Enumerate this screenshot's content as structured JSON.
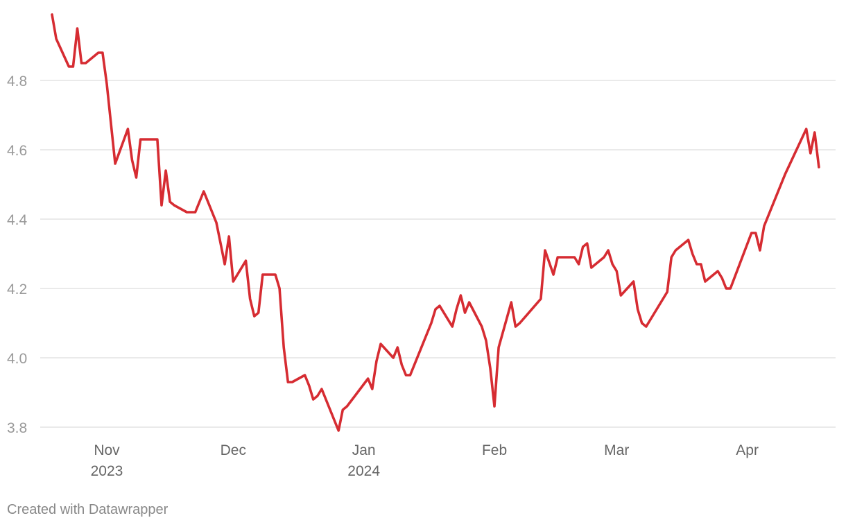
{
  "footer": {
    "credit": "Created with Datawrapper"
  },
  "colors": {
    "line": "#d62c32",
    "grid": "#dddddd",
    "axis_text": "#999999",
    "x_text": "#666666",
    "footer": "#888888"
  },
  "chart_data": {
    "type": "line",
    "title": "",
    "xlabel": "",
    "ylabel": "",
    "ylim": [
      3.8,
      5.0
    ],
    "xlim": [
      "2023-10-19",
      "2024-04-19"
    ],
    "grid": true,
    "y_ticks": [
      {
        "value": 3.8,
        "label": "3.8"
      },
      {
        "value": 4.0,
        "label": "4.0"
      },
      {
        "value": 4.2,
        "label": "4.2"
      },
      {
        "value": 4.4,
        "label": "4.4"
      },
      {
        "value": 4.6,
        "label": "4.6"
      },
      {
        "value": 4.8,
        "label": "4.8"
      }
    ],
    "x_ticks": [
      {
        "date": "2023-11-01",
        "label": "Nov",
        "sublabel": "2023"
      },
      {
        "date": "2023-12-01",
        "label": "Dec",
        "sublabel": ""
      },
      {
        "date": "2024-01-01",
        "label": "Jan",
        "sublabel": "2024"
      },
      {
        "date": "2024-02-01",
        "label": "Feb",
        "sublabel": ""
      },
      {
        "date": "2024-03-01",
        "label": "Mar",
        "sublabel": ""
      },
      {
        "date": "2024-04-01",
        "label": "Apr",
        "sublabel": ""
      }
    ],
    "series": [
      {
        "values": [
          [
            "2023-10-19",
            4.99
          ],
          [
            "2023-10-20",
            4.92
          ],
          [
            "2023-10-23",
            4.84
          ],
          [
            "2023-10-24",
            4.84
          ],
          [
            "2023-10-25",
            4.95
          ],
          [
            "2023-10-26",
            4.85
          ],
          [
            "2023-10-27",
            4.85
          ],
          [
            "2023-10-30",
            4.88
          ],
          [
            "2023-10-31",
            4.88
          ],
          [
            "2023-11-01",
            4.79
          ],
          [
            "2023-11-03",
            4.56
          ],
          [
            "2023-11-06",
            4.66
          ],
          [
            "2023-11-07",
            4.57
          ],
          [
            "2023-11-08",
            4.52
          ],
          [
            "2023-11-09",
            4.63
          ],
          [
            "2023-11-10",
            4.63
          ],
          [
            "2023-11-13",
            4.63
          ],
          [
            "2023-11-14",
            4.44
          ],
          [
            "2023-11-15",
            4.54
          ],
          [
            "2023-11-16",
            4.45
          ],
          [
            "2023-11-17",
            4.44
          ],
          [
            "2023-11-20",
            4.42
          ],
          [
            "2023-11-21",
            4.42
          ],
          [
            "2023-11-22",
            4.42
          ],
          [
            "2023-11-24",
            4.48
          ],
          [
            "2023-11-27",
            4.39
          ],
          [
            "2023-11-28",
            4.33
          ],
          [
            "2023-11-29",
            4.27
          ],
          [
            "2023-11-30",
            4.35
          ],
          [
            "2023-12-01",
            4.22
          ],
          [
            "2023-12-04",
            4.28
          ],
          [
            "2023-12-05",
            4.17
          ],
          [
            "2023-12-06",
            4.12
          ],
          [
            "2023-12-07",
            4.13
          ],
          [
            "2023-12-08",
            4.24
          ],
          [
            "2023-12-11",
            4.24
          ],
          [
            "2023-12-12",
            4.2
          ],
          [
            "2023-12-13",
            4.03
          ],
          [
            "2023-12-14",
            3.93
          ],
          [
            "2023-12-15",
            3.93
          ],
          [
            "2023-12-18",
            3.95
          ],
          [
            "2023-12-19",
            3.92
          ],
          [
            "2023-12-20",
            3.88
          ],
          [
            "2023-12-21",
            3.89
          ],
          [
            "2023-12-22",
            3.91
          ],
          [
            "2023-12-26",
            3.79
          ],
          [
            "2023-12-27",
            3.85
          ],
          [
            "2023-12-28",
            3.86
          ],
          [
            "2024-01-02",
            3.94
          ],
          [
            "2024-01-03",
            3.91
          ],
          [
            "2024-01-04",
            3.99
          ],
          [
            "2024-01-05",
            4.04
          ],
          [
            "2024-01-08",
            4.0
          ],
          [
            "2024-01-09",
            4.03
          ],
          [
            "2024-01-10",
            3.98
          ],
          [
            "2024-01-11",
            3.95
          ],
          [
            "2024-01-12",
            3.95
          ],
          [
            "2024-01-16",
            4.07
          ],
          [
            "2024-01-17",
            4.1
          ],
          [
            "2024-01-18",
            4.14
          ],
          [
            "2024-01-19",
            4.15
          ],
          [
            "2024-01-22",
            4.09
          ],
          [
            "2024-01-23",
            4.14
          ],
          [
            "2024-01-24",
            4.18
          ],
          [
            "2024-01-25",
            4.13
          ],
          [
            "2024-01-26",
            4.16
          ],
          [
            "2024-01-29",
            4.09
          ],
          [
            "2024-01-30",
            4.05
          ],
          [
            "2024-01-31",
            3.97
          ],
          [
            "2024-02-01",
            3.86
          ],
          [
            "2024-02-02",
            4.03
          ],
          [
            "2024-02-05",
            4.16
          ],
          [
            "2024-02-06",
            4.09
          ],
          [
            "2024-02-07",
            4.1
          ],
          [
            "2024-02-12",
            4.17
          ],
          [
            "2024-02-13",
            4.31
          ],
          [
            "2024-02-15",
            4.24
          ],
          [
            "2024-02-16",
            4.29
          ],
          [
            "2024-02-20",
            4.29
          ],
          [
            "2024-02-21",
            4.27
          ],
          [
            "2024-02-22",
            4.32
          ],
          [
            "2024-02-23",
            4.33
          ],
          [
            "2024-02-24",
            4.26
          ],
          [
            "2024-02-27",
            4.29
          ],
          [
            "2024-02-28",
            4.31
          ],
          [
            "2024-02-29",
            4.27
          ],
          [
            "2024-03-01",
            4.25
          ],
          [
            "2024-03-02",
            4.18
          ],
          [
            "2024-03-05",
            4.22
          ],
          [
            "2024-03-06",
            4.14
          ],
          [
            "2024-03-07",
            4.1
          ],
          [
            "2024-03-08",
            4.09
          ],
          [
            "2024-03-13",
            4.19
          ],
          [
            "2024-03-14",
            4.29
          ],
          [
            "2024-03-15",
            4.31
          ],
          [
            "2024-03-18",
            4.34
          ],
          [
            "2024-03-19",
            4.3
          ],
          [
            "2024-03-20",
            4.27
          ],
          [
            "2024-03-21",
            4.27
          ],
          [
            "2024-03-22",
            4.22
          ],
          [
            "2024-03-25",
            4.25
          ],
          [
            "2024-03-26",
            4.23
          ],
          [
            "2024-03-27",
            4.2
          ],
          [
            "2024-03-28",
            4.2
          ],
          [
            "2024-04-02",
            4.36
          ],
          [
            "2024-04-03",
            4.36
          ],
          [
            "2024-04-04",
            4.31
          ],
          [
            "2024-04-05",
            4.38
          ],
          [
            "2024-04-10",
            4.53
          ],
          [
            "2024-04-15",
            4.66
          ],
          [
            "2024-04-16",
            4.59
          ],
          [
            "2024-04-17",
            4.65
          ],
          [
            "2024-04-18",
            4.55
          ]
        ]
      }
    ]
  }
}
